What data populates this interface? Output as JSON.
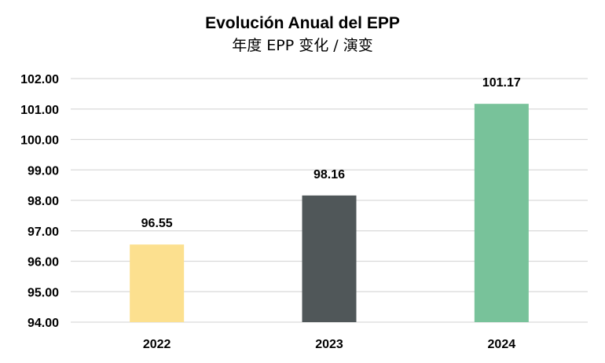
{
  "chart_data": {
    "type": "bar",
    "title": "Evolución Anual del EPP",
    "subtitle": "年度 EPP 变化 / 演变",
    "categories": [
      "2022",
      "2023",
      "2024"
    ],
    "values": [
      96.55,
      98.16,
      101.17
    ],
    "data_labels": [
      "96.55",
      "98.16",
      "101.17"
    ],
    "colors": [
      "#fce08f",
      "#505759",
      "#78c29a"
    ],
    "ylim": [
      94,
      102
    ],
    "yticks": [
      "94.00",
      "95.00",
      "96.00",
      "97.00",
      "98.00",
      "99.00",
      "100.00",
      "101.00",
      "102.00"
    ],
    "xlabel": "",
    "ylabel": "",
    "grid": true,
    "legend": "none"
  }
}
